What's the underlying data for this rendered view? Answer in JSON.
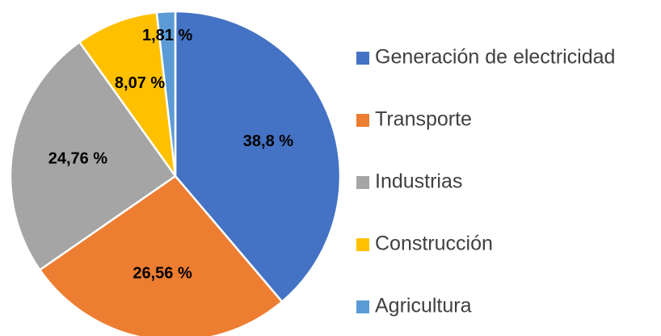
{
  "chart_data": {
    "type": "pie",
    "categories": [
      "Generación de electricidad",
      "Transporte",
      "Industrias",
      "Construcción",
      "Agricultura"
    ],
    "values": [
      38.8,
      26.56,
      24.76,
      8.07,
      1.81
    ],
    "value_labels": [
      "38,8 %",
      "26,56 %",
      "24,76 %",
      "8,07 %",
      "1,81 %"
    ],
    "colors": [
      "#4472c4",
      "#ed7d31",
      "#a5a5a5",
      "#ffc000",
      "#5b9bd5"
    ],
    "legend": "right"
  }
}
